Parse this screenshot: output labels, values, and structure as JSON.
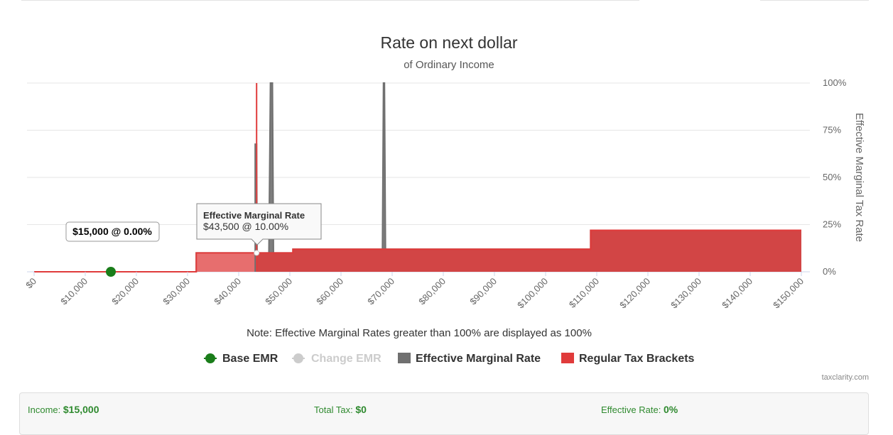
{
  "chart_data": {
    "type": "area",
    "title": "Rate on next dollar",
    "subtitle": "of Ordinary Income",
    "ylabel": "Effective Marginal Tax Rate",
    "xlim": [
      0,
      150000
    ],
    "ylim": [
      0,
      100
    ],
    "x_ticks": [
      "$0",
      "$10,000",
      "$20,000",
      "$30,000",
      "$40,000",
      "$50,000",
      "$60,000",
      "$70,000",
      "$80,000",
      "$90,000",
      "$100,000",
      "$110,000",
      "$120,000",
      "$130,000",
      "$140,000",
      "$150,000"
    ],
    "y_ticks": [
      "0%",
      "25%",
      "50%",
      "75%",
      "100%"
    ],
    "grid": true,
    "legend_position": "bottom",
    "series": [
      {
        "name": "Regular Tax Brackets",
        "color": "#e03b3b",
        "points": [
          [
            0,
            0
          ],
          [
            31700,
            0
          ],
          [
            31700,
            10
          ],
          [
            43500,
            10
          ],
          [
            43500,
            100
          ],
          [
            43500,
            10
          ],
          [
            50600,
            10
          ],
          [
            50600,
            12
          ],
          [
            108800,
            12
          ],
          [
            108800,
            22
          ],
          [
            150000,
            22
          ]
        ]
      },
      {
        "name": "Effective Marginal Rate",
        "color": "#707070",
        "points": [
          [
            0,
            0
          ],
          [
            31700,
            0
          ],
          [
            31700,
            10
          ],
          [
            43500,
            10
          ],
          [
            43500,
            68
          ],
          [
            43600,
            10
          ],
          [
            45900,
            10
          ],
          [
            46200,
            100
          ],
          [
            46600,
            100
          ],
          [
            46800,
            10
          ],
          [
            50600,
            10
          ],
          [
            50600,
            12
          ],
          [
            68100,
            12
          ],
          [
            68300,
            100
          ],
          [
            68500,
            100
          ],
          [
            68700,
            12
          ],
          [
            108800,
            12
          ],
          [
            108800,
            22
          ],
          [
            150000,
            22
          ]
        ]
      },
      {
        "name": "Base EMR",
        "color": "#1a7d1a",
        "x": [
          15000
        ],
        "y": [
          0
        ]
      },
      {
        "name": "Change EMR",
        "color": "#cccccc",
        "x": [
          43500
        ],
        "y": [
          10
        ]
      }
    ],
    "annotations": {
      "base_label": "$15,000 @ 0.00%",
      "tooltip_title": "Effective Marginal Rate",
      "tooltip_value": "$43,500 @ 10.00%"
    },
    "note": "Note: Effective Marginal Rates greater than 100% are displayed as 100%",
    "credit": "taxclarity.com"
  },
  "summary": {
    "income_label": "Income:",
    "income_value": "$15,000",
    "total_tax_label": "Total Tax:",
    "total_tax_value": "$0",
    "effective_rate_label": "Effective Rate:",
    "effective_rate_value": "0%"
  }
}
